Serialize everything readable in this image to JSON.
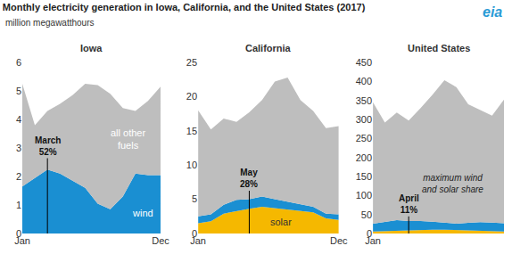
{
  "title": "Monthly electricity generation in Iowa, California, and the United States (2017)",
  "subtitle": "million megawatthours",
  "logo": "eia",
  "chart_data": [
    {
      "type": "area",
      "stacked": true,
      "title": "Iowa",
      "categories": [
        "Jan",
        null,
        null,
        null,
        null,
        null,
        null,
        null,
        null,
        null,
        null,
        "Dec"
      ],
      "series": [
        {
          "name": "wind",
          "color": "#1a8fd2",
          "values": [
            1.65,
            1.95,
            2.24,
            2.1,
            1.85,
            1.6,
            1.05,
            0.85,
            1.3,
            2.1,
            2.05,
            2.05
          ]
        },
        {
          "name": "all other fuels",
          "color": "#bebebe",
          "values": [
            3.6,
            1.85,
            2.06,
            2.45,
            3.0,
            3.65,
            4.15,
            4.05,
            3.1,
            2.2,
            2.6,
            3.1
          ]
        }
      ],
      "ylim": [
        0,
        6
      ],
      "yticks": [
        0,
        1,
        2,
        3,
        4,
        5,
        6
      ],
      "annotations": [
        {
          "text": "March\n52%",
          "index": 2
        }
      ]
    },
    {
      "type": "area",
      "stacked": true,
      "title": "California",
      "categories": [
        "Jan",
        null,
        null,
        null,
        null,
        null,
        null,
        null,
        null,
        null,
        null,
        "Dec"
      ],
      "series": [
        {
          "name": "solar",
          "color": "#f5b800",
          "values": [
            1.5,
            1.8,
            2.9,
            3.3,
            3.6,
            3.9,
            3.7,
            3.5,
            3.3,
            3.1,
            2.2,
            2.0
          ]
        },
        {
          "name": "wind",
          "color": "#1a8fd2",
          "values": [
            1.0,
            1.0,
            1.3,
            1.6,
            1.4,
            1.5,
            1.3,
            1.1,
            1.0,
            0.8,
            0.7,
            0.8
          ]
        },
        {
          "name": "all other fuels",
          "color": "#bebebe",
          "values": [
            15.5,
            12.4,
            12.6,
            11.4,
            12.7,
            14.1,
            17.2,
            18.2,
            15.2,
            14.0,
            12.5,
            12.9
          ]
        }
      ],
      "ylim": [
        0,
        25
      ],
      "yticks": [
        0,
        5,
        10,
        15,
        20,
        25
      ],
      "annotations": [
        {
          "text": "May\n28%",
          "index": 4
        }
      ]
    },
    {
      "type": "area",
      "stacked": true,
      "title": "United States",
      "categories": [
        "Jan",
        null,
        null,
        null,
        null,
        null,
        null,
        null,
        null,
        null,
        null,
        "Dec"
      ],
      "series": [
        {
          "name": "solar",
          "color": "#f5b800",
          "values": [
            5,
            6,
            8,
            9,
            10,
            10,
            10,
            9,
            8,
            7,
            5,
            5
          ]
        },
        {
          "name": "wind",
          "color": "#1a8fd2",
          "values": [
            21,
            24,
            27,
            24,
            23,
            21,
            19,
            17,
            20,
            23,
            24,
            22
          ]
        },
        {
          "name": "all other fuels",
          "color": "#bebebe",
          "values": [
            319,
            262,
            283,
            264,
            297,
            334,
            374,
            359,
            312,
            295,
            281,
            325
          ]
        }
      ],
      "ylim": [
        0,
        450
      ],
      "yticks": [
        0,
        50,
        100,
        150,
        200,
        250,
        300,
        350,
        400,
        450
      ],
      "annotations": [
        {
          "text": "maximum wind\nand solar share"
        },
        {
          "text": "April\n11%",
          "index": 3
        }
      ]
    }
  ]
}
